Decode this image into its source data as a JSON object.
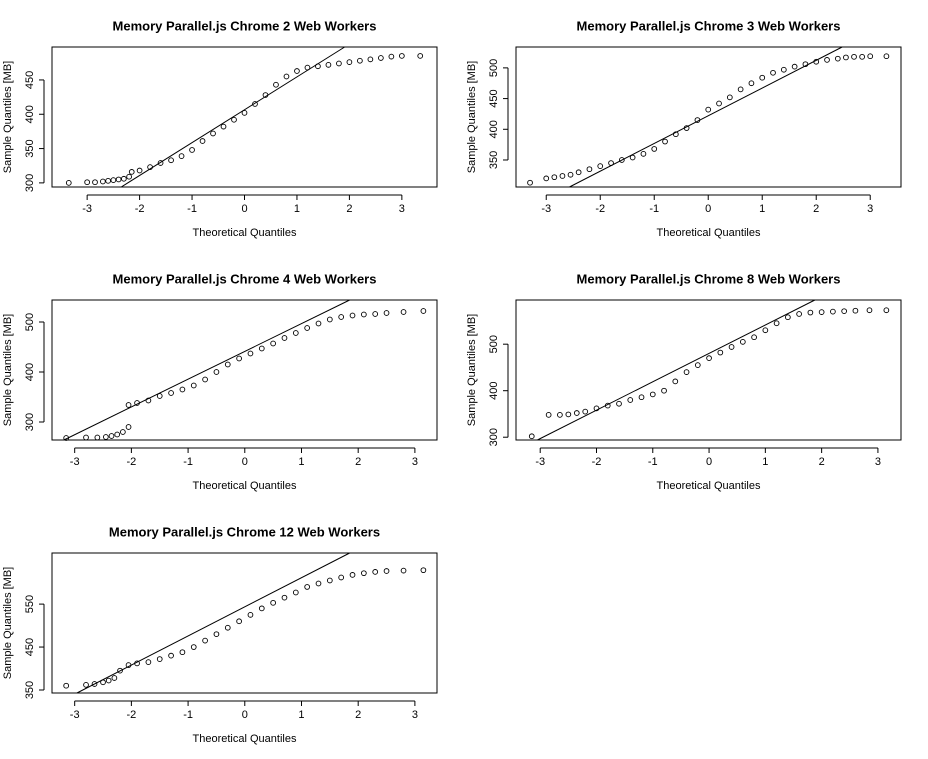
{
  "chart_data": [
    {
      "type": "scatter",
      "title": "Memory Parallel.js Chrome  2  Web Workers",
      "xlabel": "Theoretical Quantiles",
      "ylabel": "Sample Quantiles [MB]",
      "xlim": [
        -3.67,
        3.67
      ],
      "ylim": [
        294,
        498
      ],
      "xticks": [
        -3,
        -2,
        -1,
        0,
        1,
        2,
        3
      ],
      "yticks": [
        300,
        350,
        400,
        450
      ],
      "series": [
        {
          "type": "scatter",
          "color": "#000000",
          "x": [
            -3.35,
            -3.0,
            -2.85,
            -2.7,
            -2.6,
            -2.5,
            -2.4,
            -2.3,
            -2.2,
            -2.15,
            -2.0,
            -1.8,
            -1.6,
            -1.4,
            -1.2,
            -1.0,
            -0.8,
            -0.6,
            -0.4,
            -0.2,
            0,
            0.2,
            0.4,
            0.6,
            0.8,
            1.0,
            1.2,
            1.4,
            1.6,
            1.8,
            2.0,
            2.2,
            2.4,
            2.6,
            2.8,
            3.0,
            3.35
          ],
          "y": [
            300,
            301,
            301,
            302,
            303,
            304,
            305,
            306,
            309,
            316,
            318,
            323,
            329,
            333,
            339,
            348,
            361,
            372,
            382,
            392,
            402,
            415,
            428,
            443,
            455,
            463,
            468,
            470,
            472,
            474,
            476,
            478,
            480,
            482,
            484,
            485,
            485
          ]
        },
        {
          "type": "line",
          "color": "#000000",
          "x": [
            -2.35,
            1.91
          ],
          "y": [
            294,
            498
          ]
        }
      ]
    },
    {
      "type": "scatter",
      "title": "Memory Parallel.js Chrome  3  Web Workers",
      "xlabel": "Theoretical Quantiles",
      "ylabel": "Sample Quantiles [MB]",
      "xlim": [
        -3.56,
        3.57
      ],
      "ylim": [
        306,
        534
      ],
      "xticks": [
        -3,
        -2,
        -1,
        0,
        1,
        2,
        3
      ],
      "yticks": [
        350,
        400,
        450,
        500
      ],
      "series": [
        {
          "type": "scatter",
          "color": "#000000",
          "x": [
            -3.3,
            -3.0,
            -2.85,
            -2.7,
            -2.55,
            -2.4,
            -2.2,
            -2.0,
            -1.8,
            -1.6,
            -1.4,
            -1.2,
            -1.0,
            -0.8,
            -0.6,
            -0.4,
            -0.2,
            0,
            0.2,
            0.4,
            0.6,
            0.8,
            1.0,
            1.2,
            1.4,
            1.6,
            1.8,
            2.0,
            2.2,
            2.4,
            2.55,
            2.7,
            2.85,
            3.0,
            3.3
          ],
          "y": [
            313,
            320,
            322,
            324,
            326,
            330,
            335,
            340,
            345,
            350,
            354,
            360,
            368,
            380,
            392,
            402,
            415,
            432,
            442,
            452,
            465,
            475,
            484,
            492,
            497,
            502,
            506,
            510,
            513,
            515,
            517,
            518,
            518,
            519,
            519
          ]
        },
        {
          "type": "line",
          "color": "#000000",
          "x": [
            -2.57,
            2.48
          ],
          "y": [
            306,
            534
          ]
        }
      ]
    },
    {
      "type": "scatter",
      "title": "Memory Parallel.js Chrome  4  Web Workers",
      "xlabel": "Theoretical Quantiles",
      "ylabel": "Sample Quantiles [MB]",
      "xlim": [
        -3.4,
        3.39
      ],
      "ylim": [
        264,
        544
      ],
      "xticks": [
        -3,
        -2,
        -1,
        0,
        1,
        2,
        3
      ],
      "yticks": [
        300,
        400,
        500
      ],
      "series": [
        {
          "type": "scatter",
          "color": "#000000",
          "x": [
            -3.15,
            -2.8,
            -2.6,
            -2.45,
            -2.35,
            -2.25,
            -2.15,
            -2.05,
            -2.05,
            -1.9,
            -1.7,
            -1.5,
            -1.3,
            -1.1,
            -0.9,
            -0.7,
            -0.5,
            -0.3,
            -0.1,
            0.1,
            0.3,
            0.5,
            0.7,
            0.9,
            1.1,
            1.3,
            1.5,
            1.7,
            1.9,
            2.1,
            2.3,
            2.5,
            2.8,
            3.15
          ],
          "y": [
            268,
            269,
            269,
            270,
            272,
            275,
            280,
            290,
            334,
            338,
            343,
            352,
            358,
            365,
            373,
            385,
            400,
            415,
            427,
            437,
            447,
            457,
            468,
            478,
            488,
            497,
            505,
            510,
            513,
            515,
            516,
            518,
            520,
            522
          ]
        },
        {
          "type": "line",
          "color": "#000000",
          "x": [
            -3.19,
            1.85
          ],
          "y": [
            264,
            544
          ]
        }
      ]
    },
    {
      "type": "scatter",
      "title": "Memory Parallel.js Chrome  8  Web Workers",
      "xlabel": "Theoretical Quantiles",
      "ylabel": "Sample Quantiles [MB]",
      "xlim": [
        -3.43,
        3.41
      ],
      "ylim": [
        294,
        595
      ],
      "xticks": [
        -3,
        -2,
        -1,
        0,
        1,
        2,
        3
      ],
      "yticks": [
        300,
        400,
        500
      ],
      "series": [
        {
          "type": "scatter",
          "color": "#000000",
          "x": [
            -3.15,
            -2.85,
            -2.65,
            -2.5,
            -2.35,
            -2.2,
            -2.0,
            -1.8,
            -1.6,
            -1.4,
            -1.2,
            -1.0,
            -0.8,
            -0.6,
            -0.4,
            -0.2,
            0,
            0.2,
            0.4,
            0.6,
            0.8,
            1.0,
            1.2,
            1.4,
            1.6,
            1.8,
            2.0,
            2.2,
            2.4,
            2.6,
            2.85,
            3.15
          ],
          "y": [
            302,
            348,
            348,
            349,
            352,
            355,
            362,
            368,
            372,
            380,
            386,
            392,
            400,
            420,
            440,
            455,
            470,
            482,
            494,
            505,
            515,
            530,
            545,
            558,
            565,
            568,
            569,
            570,
            571,
            572,
            573,
            573
          ]
        },
        {
          "type": "line",
          "color": "#000000",
          "x": [
            -3.05,
            1.88
          ],
          "y": [
            294,
            595
          ]
        }
      ]
    },
    {
      "type": "scatter",
      "title": "Memory Parallel.js Chrome  12  Web Workers",
      "xlabel": "Theoretical Quantiles",
      "ylabel": "Sample Quantiles [MB]",
      "xlim": [
        -3.4,
        3.39
      ],
      "ylim": [
        343,
        669
      ],
      "xticks": [
        -3,
        -2,
        -1,
        0,
        1,
        2,
        3
      ],
      "yticks": [
        350,
        450,
        550
      ],
      "series": [
        {
          "type": "scatter",
          "color": "#000000",
          "x": [
            -3.15,
            -2.8,
            -2.65,
            -2.5,
            -2.4,
            -2.3,
            -2.2,
            -2.05,
            -1.9,
            -1.7,
            -1.5,
            -1.3,
            -1.1,
            -0.9,
            -0.7,
            -0.5,
            -0.3,
            -0.1,
            0.1,
            0.3,
            0.5,
            0.7,
            0.9,
            1.1,
            1.3,
            1.5,
            1.7,
            1.9,
            2.1,
            2.3,
            2.5,
            2.8,
            3.15
          ],
          "y": [
            360,
            362,
            364,
            368,
            372,
            378,
            395,
            408,
            412,
            415,
            422,
            430,
            438,
            450,
            465,
            480,
            495,
            510,
            525,
            540,
            553,
            565,
            577,
            590,
            598,
            605,
            612,
            618,
            622,
            625,
            627,
            628,
            629
          ]
        },
        {
          "type": "line",
          "color": "#000000",
          "x": [
            -2.96,
            1.85
          ],
          "y": [
            343,
            669
          ]
        }
      ]
    }
  ]
}
